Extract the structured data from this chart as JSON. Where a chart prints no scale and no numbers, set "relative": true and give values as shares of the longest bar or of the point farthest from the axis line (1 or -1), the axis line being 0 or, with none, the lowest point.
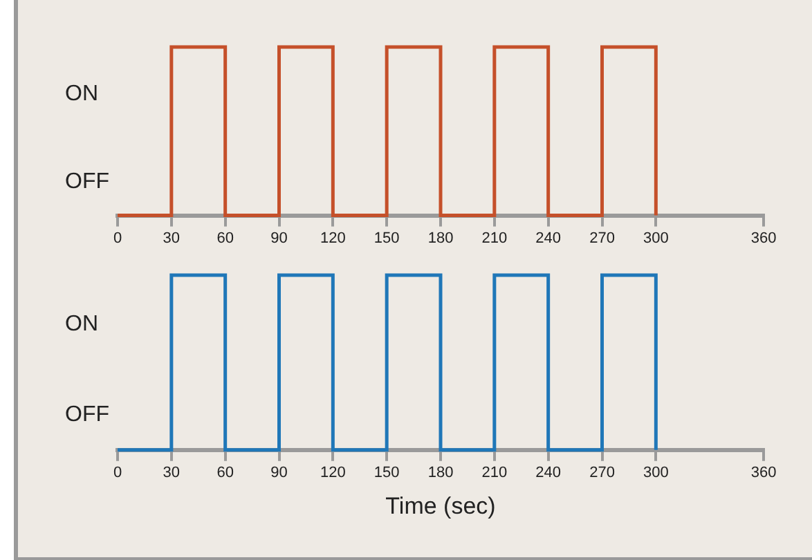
{
  "chart_data": [
    {
      "type": "step",
      "x": [
        0,
        30,
        60,
        90,
        120,
        150,
        180,
        210,
        240,
        270,
        300
      ],
      "series": [
        {
          "color": "#c5502a",
          "values": [
            0,
            1,
            0,
            1,
            0,
            1,
            0,
            1,
            0,
            1,
            0
          ]
        }
      ],
      "xlim": [
        0,
        360
      ],
      "xticks": [
        0,
        30,
        60,
        90,
        120,
        150,
        180,
        210,
        240,
        270,
        300,
        360
      ],
      "relative": true,
      "annotations": [
        "ON",
        "OFF"
      ],
      "grid": false,
      "legend": false
    },
    {
      "type": "step",
      "x": [
        0,
        30,
        60,
        90,
        120,
        150,
        180,
        210,
        240,
        270,
        300
      ],
      "series": [
        {
          "color": "#1f77b8",
          "values": [
            0,
            1,
            0,
            1,
            0,
            1,
            0,
            1,
            0,
            1,
            0
          ]
        }
      ],
      "xlabel": "Time (sec)",
      "xlim": [
        0,
        360
      ],
      "xticks": [
        0,
        30,
        60,
        90,
        120,
        150,
        180,
        210,
        240,
        270,
        300,
        360
      ],
      "relative": true,
      "annotations": [
        "ON",
        "OFF"
      ],
      "grid": false,
      "legend": false
    }
  ]
}
